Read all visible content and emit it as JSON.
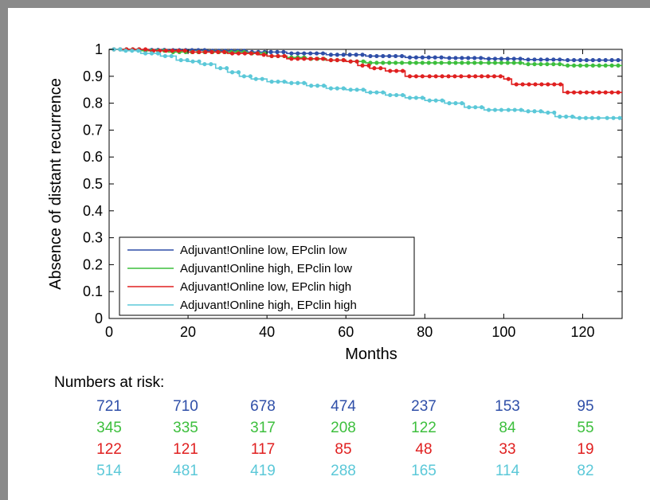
{
  "chart_data": {
    "type": "line",
    "xlabel": "Months",
    "ylabel": "Absence of distant recurrence",
    "xlim": [
      0,
      130
    ],
    "ylim": [
      0,
      1
    ],
    "x_ticks": [
      0,
      20,
      40,
      60,
      80,
      100,
      120
    ],
    "y_ticks": [
      0,
      0.1,
      0.2,
      0.3,
      0.4,
      0.5,
      0.6,
      0.7,
      0.8,
      0.9,
      1
    ],
    "y_tick_labels": [
      "0",
      "0.1",
      "0.2",
      "0.3",
      "0.4",
      "0.5",
      "0.6",
      "0.7",
      "0.8",
      "0.9",
      "1"
    ],
    "grid": false,
    "legend_position": "bottom-left",
    "series": [
      {
        "name": "Adjuvant!Online low, EPclin low",
        "color": "#2f4fa8",
        "x": [
          0,
          8,
          15,
          25,
          35,
          45,
          55,
          65,
          75,
          85,
          95,
          105,
          115,
          130
        ],
        "y": [
          1,
          0.998,
          0.997,
          0.995,
          0.99,
          0.985,
          0.98,
          0.975,
          0.97,
          0.968,
          0.965,
          0.962,
          0.96,
          0.96
        ]
      },
      {
        "name": "Adjuvant!Online high, EPclin low",
        "color": "#3dbf3d",
        "x": [
          0,
          8,
          15,
          25,
          35,
          40,
          45,
          50,
          55,
          60,
          65,
          75,
          85,
          95,
          105,
          115,
          130
        ],
        "y": [
          1,
          0.995,
          0.99,
          0.99,
          0.985,
          0.975,
          0.97,
          0.965,
          0.96,
          0.955,
          0.95,
          0.95,
          0.95,
          0.95,
          0.945,
          0.94,
          0.94
        ]
      },
      {
        "name": "Adjuvant!Online low, EPclin high",
        "color": "#e02020",
        "x": [
          0,
          10,
          20,
          30,
          38,
          40,
          45,
          55,
          60,
          63,
          66,
          70,
          75,
          80,
          90,
          100,
          102,
          110,
          115,
          130
        ],
        "y": [
          1,
          0.995,
          0.99,
          0.985,
          0.98,
          0.975,
          0.965,
          0.96,
          0.955,
          0.94,
          0.93,
          0.92,
          0.9,
          0.9,
          0.9,
          0.89,
          0.87,
          0.87,
          0.84,
          0.84
        ]
      },
      {
        "name": "Adjuvant!Online high, EPclin high",
        "color": "#5bc8d8",
        "x": [
          0,
          3,
          8,
          13,
          17,
          20,
          23,
          27,
          30,
          33,
          36,
          40,
          45,
          50,
          55,
          60,
          65,
          70,
          75,
          80,
          85,
          90,
          95,
          100,
          105,
          110,
          113,
          118,
          125,
          130
        ],
        "y": [
          1,
          0.995,
          0.985,
          0.975,
          0.96,
          0.955,
          0.945,
          0.93,
          0.915,
          0.9,
          0.89,
          0.88,
          0.875,
          0.865,
          0.855,
          0.85,
          0.84,
          0.83,
          0.82,
          0.81,
          0.8,
          0.785,
          0.775,
          0.775,
          0.77,
          0.765,
          0.75,
          0.745,
          0.745,
          0.745
        ]
      }
    ]
  },
  "risk_table": {
    "title": "Numbers at risk:",
    "rows": [
      {
        "color": "#2f4fa8",
        "values": [
          "721",
          "710",
          "678",
          "474",
          "237",
          "153",
          "95"
        ]
      },
      {
        "color": "#3dbf3d",
        "values": [
          "345",
          "335",
          "317",
          "208",
          "122",
          "84",
          "55"
        ]
      },
      {
        "color": "#e02020",
        "values": [
          "122",
          "121",
          "117",
          "85",
          "48",
          "33",
          "19"
        ]
      },
      {
        "color": "#5bc8d8",
        "values": [
          "514",
          "481",
          "419",
          "288",
          "165",
          "114",
          "82"
        ]
      }
    ]
  }
}
